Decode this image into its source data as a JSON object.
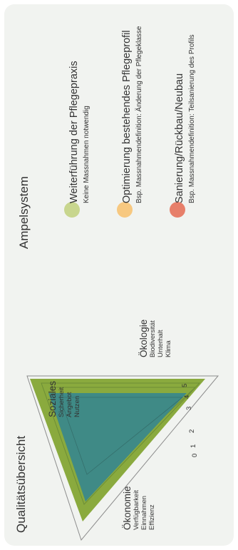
{
  "left_panel": {
    "title": "Qualitätsübersicht",
    "axes": [
      {
        "title": "Ökonomie",
        "subs": [
          "Verfügbarkeit",
          "Einnahmen",
          "Effizienz"
        ]
      },
      {
        "title": "Soziales",
        "subs": [
          "Sicherheit",
          "Angebot",
          "Nutzen"
        ]
      },
      {
        "title": "Ökologie",
        "subs": [
          "Biodiversität",
          "Unterhalt",
          "Klima"
        ]
      }
    ],
    "scale_ticks": [
      "5",
      "4",
      "3",
      "2",
      "1",
      "0"
    ]
  },
  "right_panel": {
    "title": "Ampelsystem",
    "items": [
      {
        "color": "#c8d68e",
        "title": "Weiterführung der Pflegepraxis",
        "subtitle": "Keine Massnahmen notwendig"
      },
      {
        "color": "#f7c880",
        "title": "Optimierung bestehendes Pflegeprofil",
        "subtitle": "Bsp. Massnahmendefinition: Änderung der Pflegeklasse"
      },
      {
        "color": "#e77f6a",
        "title": "Sanierung/Rückbau/Neubau",
        "subtitle": "Bsp. Massnahmendefinition: Teilsanierung des Profils"
      }
    ]
  },
  "colors": {
    "card_bg": "#f1f3f0",
    "green_fill": "#8aaa3e",
    "green_dark": "#6d8e36",
    "teal_fill": "#3f8a86",
    "outline": "#8c8c8c"
  }
}
